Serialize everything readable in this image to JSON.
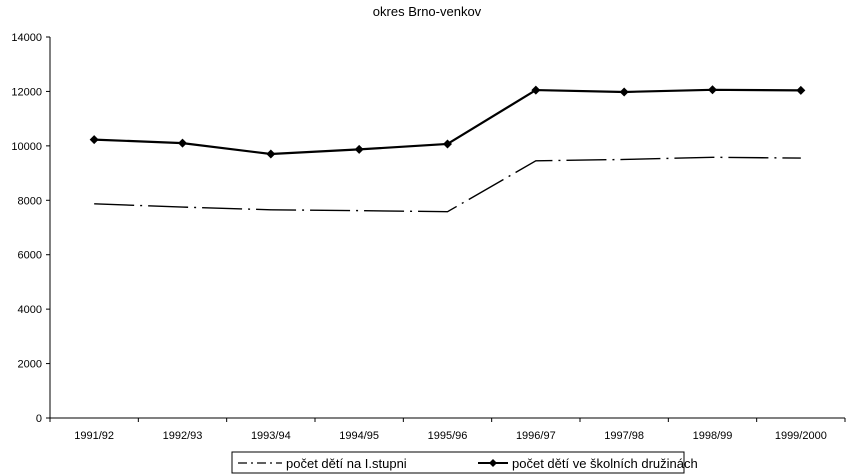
{
  "chart_data": {
    "type": "line",
    "title": "okres Brno-venkov",
    "xlabel": "",
    "ylabel": "",
    "categories": [
      "1991/92",
      "1992/93",
      "1993/94",
      "1994/95",
      "1995/96",
      "1996/97",
      "1997/98",
      "1998/99",
      "1999/2000"
    ],
    "ylim": [
      0,
      14000
    ],
    "yticks": [
      0,
      2000,
      4000,
      6000,
      8000,
      10000,
      12000,
      14000
    ],
    "grid": false,
    "legend_position": "bottom",
    "series": [
      {
        "name": "počet dětí na I.stupni",
        "style": "dash-dot",
        "marker": "none",
        "color": "#000000",
        "values": [
          7870,
          7750,
          7650,
          7620,
          7580,
          9450,
          9500,
          9580,
          9550
        ]
      },
      {
        "name": "počet dětí ve školních družinách",
        "style": "solid",
        "marker": "diamond",
        "color": "#000000",
        "values": [
          10230,
          10100,
          9700,
          9870,
          10070,
          12050,
          11980,
          12060,
          12040
        ]
      }
    ]
  }
}
